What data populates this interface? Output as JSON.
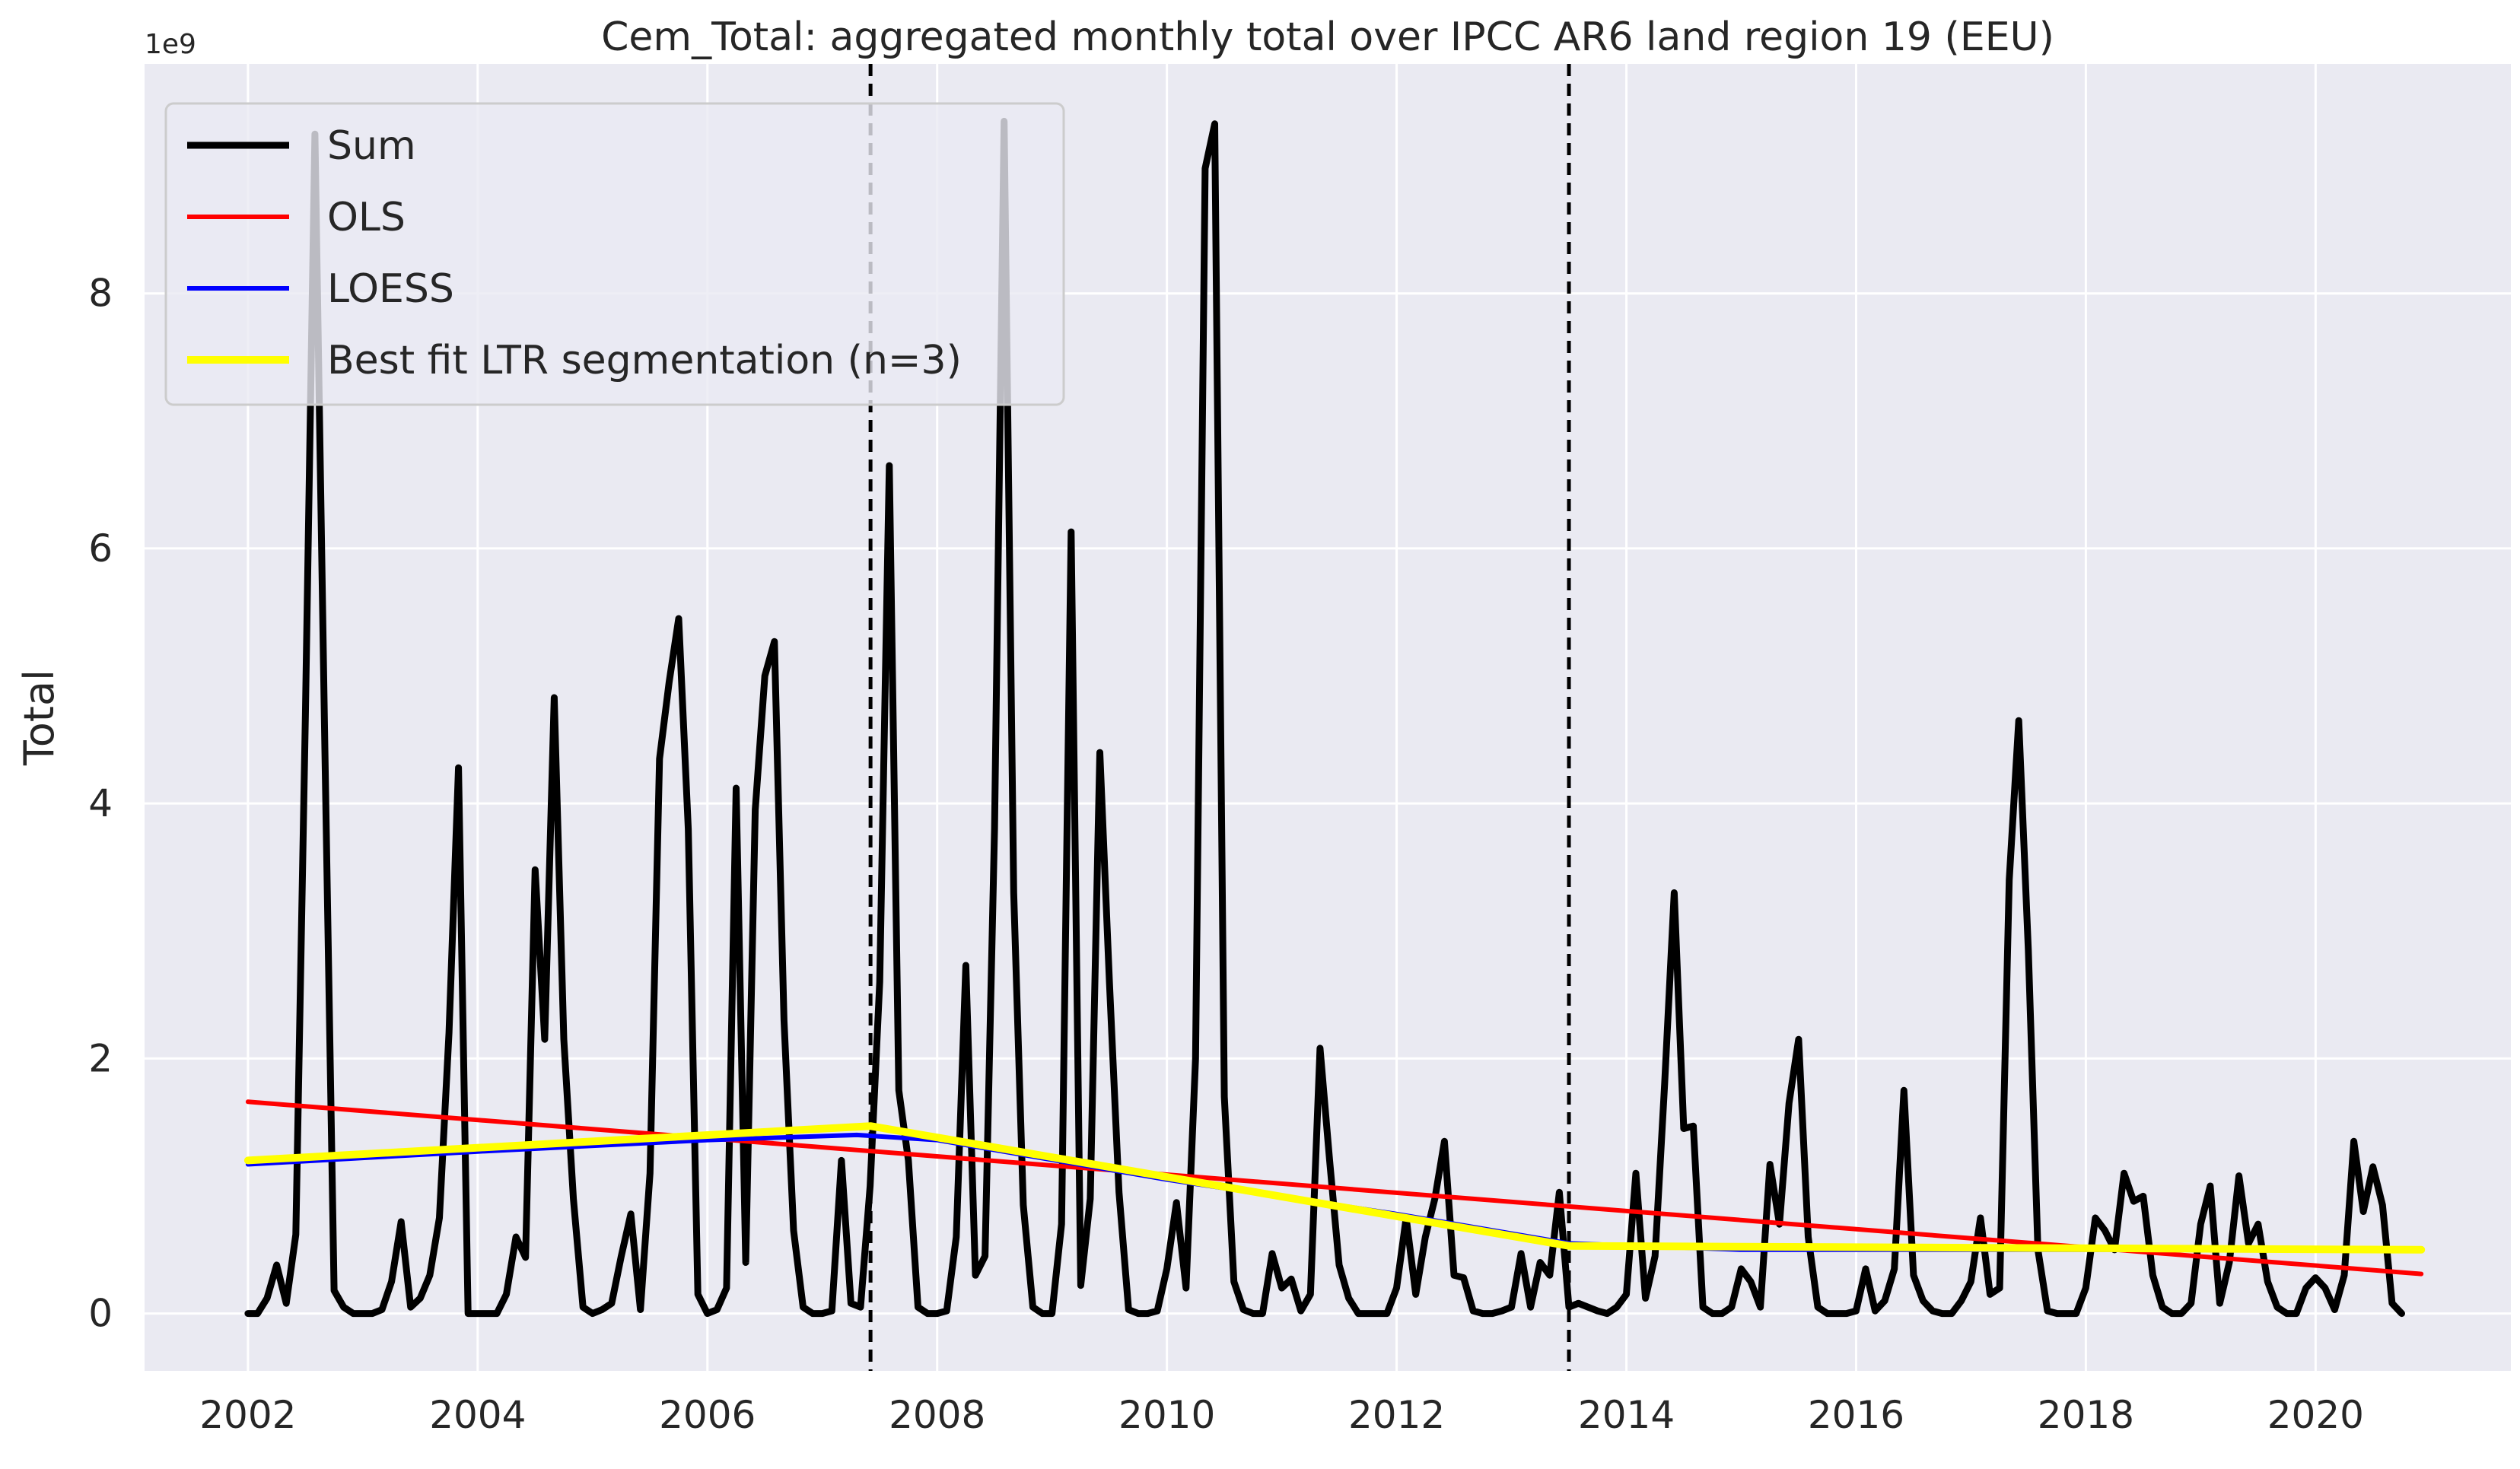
{
  "chart_data": {
    "type": "line",
    "title": "Cem_Total: aggregated monthly total over IPCC AR6 land region 19 (EEU)",
    "xlabel": "",
    "ylabel": "Total",
    "y_offset_text": "1e9",
    "xlim": [
      2001.1,
      2021.7
    ],
    "ylim": [
      -0.45,
      9.8
    ],
    "x_ticks": [
      2002,
      2004,
      2006,
      2008,
      2010,
      2012,
      2014,
      2016,
      2018,
      2020
    ],
    "x_tick_labels": [
      "2002",
      "2004",
      "2006",
      "2008",
      "2010",
      "2012",
      "2014",
      "2016",
      "2018",
      "2020"
    ],
    "y_ticks": [
      0,
      2,
      4,
      6,
      8
    ],
    "y_tick_labels": [
      "0",
      "2",
      "4",
      "6",
      "8"
    ],
    "grid": true,
    "legend_position": "top-left",
    "breakpoints": [
      2007.42,
      2013.5
    ],
    "series": [
      {
        "name": "Sum",
        "color": "#000000",
        "x_start": 2002.0,
        "x_step": 0.08333,
        "values": [
          0.0,
          0.0,
          0.12,
          0.38,
          0.08,
          0.62,
          4.7,
          9.25,
          4.6,
          0.18,
          0.05,
          0.0,
          0.0,
          0.0,
          0.03,
          0.25,
          0.72,
          0.05,
          0.12,
          0.3,
          0.75,
          2.2,
          4.28,
          0.0,
          0.0,
          0.0,
          0.0,
          0.15,
          0.6,
          0.44,
          3.48,
          2.15,
          4.83,
          2.15,
          0.9,
          0.05,
          0.0,
          0.03,
          0.08,
          0.45,
          0.78,
          0.03,
          1.1,
          4.35,
          4.95,
          5.45,
          3.8,
          0.15,
          0.0,
          0.03,
          0.2,
          4.12,
          0.4,
          3.95,
          5.0,
          5.27,
          2.3,
          0.65,
          0.05,
          0.0,
          0.0,
          0.02,
          1.2,
          0.08,
          0.05,
          1.0,
          2.6,
          6.65,
          1.75,
          1.2,
          0.05,
          0.0,
          0.0,
          0.02,
          0.6,
          2.73,
          0.3,
          0.45,
          3.8,
          9.35,
          3.3,
          0.85,
          0.05,
          0.0,
          0.0,
          0.7,
          6.13,
          0.22,
          0.9,
          4.4,
          2.6,
          0.95,
          0.03,
          0.0,
          0.0,
          0.02,
          0.35,
          0.87,
          0.2,
          2.0,
          8.98,
          9.33,
          1.7,
          0.25,
          0.03,
          0.0,
          0.0,
          0.47,
          0.2,
          0.27,
          0.02,
          0.15,
          2.08,
          1.2,
          0.38,
          0.12,
          0.0,
          0.0,
          0.0,
          0.0,
          0.2,
          0.75,
          0.15,
          0.6,
          0.9,
          1.35,
          0.3,
          0.28,
          0.02,
          0.0,
          0.0,
          0.02,
          0.05,
          0.47,
          0.05,
          0.4,
          0.3,
          0.95,
          0.05,
          0.08,
          0.05,
          0.02,
          0.0,
          0.05,
          0.15,
          1.1,
          0.12,
          0.45,
          1.8,
          3.3,
          1.45,
          1.47,
          0.05,
          0.0,
          0.0,
          0.05,
          0.35,
          0.25,
          0.05,
          1.17,
          0.7,
          1.65,
          2.15,
          0.6,
          0.05,
          0.0,
          0.0,
          0.0,
          0.02,
          0.35,
          0.02,
          0.1,
          0.35,
          1.75,
          0.3,
          0.1,
          0.02,
          0.0,
          0.0,
          0.1,
          0.25,
          0.75,
          0.15,
          0.2,
          3.4,
          4.65,
          2.85,
          0.5,
          0.02,
          0.0,
          0.0,
          0.0,
          0.2,
          0.75,
          0.65,
          0.5,
          1.1,
          0.88,
          0.92,
          0.3,
          0.05,
          0.0,
          0.0,
          0.08,
          0.7,
          1.0,
          0.08,
          0.4,
          1.08,
          0.55,
          0.7,
          0.25,
          0.05,
          0.0,
          0.0,
          0.2,
          0.28,
          0.2,
          0.03,
          0.3,
          1.35,
          0.8,
          1.15,
          0.85,
          0.08,
          0.0
        ]
      },
      {
        "name": "OLS",
        "color": "#ff0000",
        "x": [
          2002.0,
          2020.92
        ],
        "values": [
          1.66,
          0.31
        ]
      },
      {
        "name": "LOESS",
        "color": "#0000ff",
        "x": [
          2002.0,
          2004.0,
          2006.0,
          2007.3,
          2008.0,
          2010.0,
          2012.0,
          2013.5,
          2015.0,
          2017.0,
          2019.0,
          2020.92
        ],
        "values": [
          1.17,
          1.27,
          1.36,
          1.4,
          1.36,
          1.05,
          0.78,
          0.55,
          0.5,
          0.5,
          0.5,
          0.5
        ]
      },
      {
        "name": "Best fit LTR segmentation (n=3)",
        "color": "#ffff00",
        "x": [
          2002.0,
          2007.42,
          2013.5,
          2020.92
        ],
        "values": [
          1.2,
          1.47,
          0.53,
          0.5
        ]
      }
    ]
  }
}
